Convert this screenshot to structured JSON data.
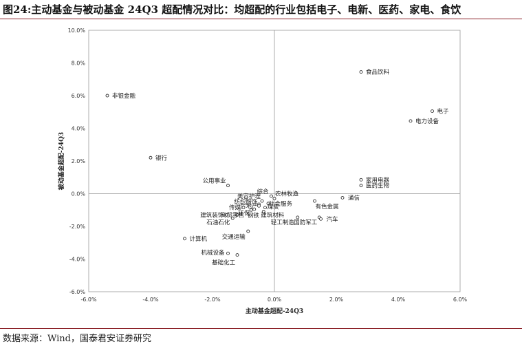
{
  "header": {
    "title": "图24:主动基金与被动基金 24Q3 超配情况对比：均超配的行业包括电子、电新、医药、家电、食饮"
  },
  "footer": {
    "source": "数据来源：Wind，国泰君安证券研究"
  },
  "colors": {
    "rule": "#8a1d25",
    "axis": "#999999",
    "marker": "#333333"
  },
  "chart_data": {
    "type": "scatter",
    "xlabel": "主动基金超配-24Q3",
    "ylabel": "被动基金超配-24Q3",
    "xlim": [
      -6.0,
      6.0
    ],
    "ylim": [
      -6.0,
      10.0
    ],
    "x_ticks": [
      "-6.0%",
      "-4.0%",
      "-2.0%",
      "0.0%",
      "2.0%",
      "4.0%",
      "6.0%"
    ],
    "y_ticks": [
      "10.0%",
      "8.0%",
      "6.0%",
      "4.0%",
      "2.0%",
      "0.0%",
      "-2.0%",
      "-4.0%",
      "-6.0%"
    ],
    "grid": false,
    "points": [
      {
        "label": "食品饮料",
        "x": 2.8,
        "y": 7.45
      },
      {
        "label": "非银金融",
        "x": -5.4,
        "y": 6.0
      },
      {
        "label": "电子",
        "x": 5.1,
        "y": 5.05
      },
      {
        "label": "电力设备",
        "x": 4.4,
        "y": 4.45
      },
      {
        "label": "银行",
        "x": -4.0,
        "y": 2.2
      },
      {
        "label": "家用电器",
        "x": 2.8,
        "y": 0.85
      },
      {
        "label": "医药生物",
        "x": 2.8,
        "y": 0.5
      },
      {
        "label": "公用事业",
        "x": -1.5,
        "y": 0.5
      },
      {
        "label": "综合",
        "x": -0.1,
        "y": -0.15
      },
      {
        "label": "农林牧渔",
        "x": 0.0,
        "y": -0.3
      },
      {
        "label": "通信",
        "x": 2.2,
        "y": -0.25
      },
      {
        "label": "美容护理",
        "x": -0.4,
        "y": -0.45
      },
      {
        "label": "社会服务",
        "x": -0.2,
        "y": -0.6
      },
      {
        "label": "纺织服饰",
        "x": -0.5,
        "y": -0.65
      },
      {
        "label": "有色金属",
        "x": 1.3,
        "y": -0.45
      },
      {
        "label": "房地产",
        "x": -0.5,
        "y": -0.75
      },
      {
        "label": "煤炭",
        "x": -0.3,
        "y": -0.85
      },
      {
        "label": "传媒",
        "x": -1.0,
        "y": -0.85
      },
      {
        "label": "环保",
        "x": -0.75,
        "y": -1.0
      },
      {
        "label": "钢铁",
        "x": -0.65,
        "y": -0.95
      },
      {
        "label": "建筑材料",
        "x": -0.35,
        "y": -1.1
      },
      {
        "label": "建筑装饰",
        "x": -1.55,
        "y": -1.3
      },
      {
        "label": "商贸零售",
        "x": -1.2,
        "y": -1.3
      },
      {
        "label": "石油石化",
        "x": -1.35,
        "y": -1.5
      },
      {
        "label": "轻工制造",
        "x": 0.75,
        "y": -1.45
      },
      {
        "label": "国防军工",
        "x": 1.45,
        "y": -1.45
      },
      {
        "label": "汽车",
        "x": 1.5,
        "y": -1.55
      },
      {
        "label": "交通运输",
        "x": -0.85,
        "y": -2.3
      },
      {
        "label": "计算机",
        "x": -2.9,
        "y": -2.75
      },
      {
        "label": "机械设备",
        "x": -1.5,
        "y": -3.65
      },
      {
        "label": "基础化工",
        "x": -1.2,
        "y": -3.75
      }
    ]
  }
}
